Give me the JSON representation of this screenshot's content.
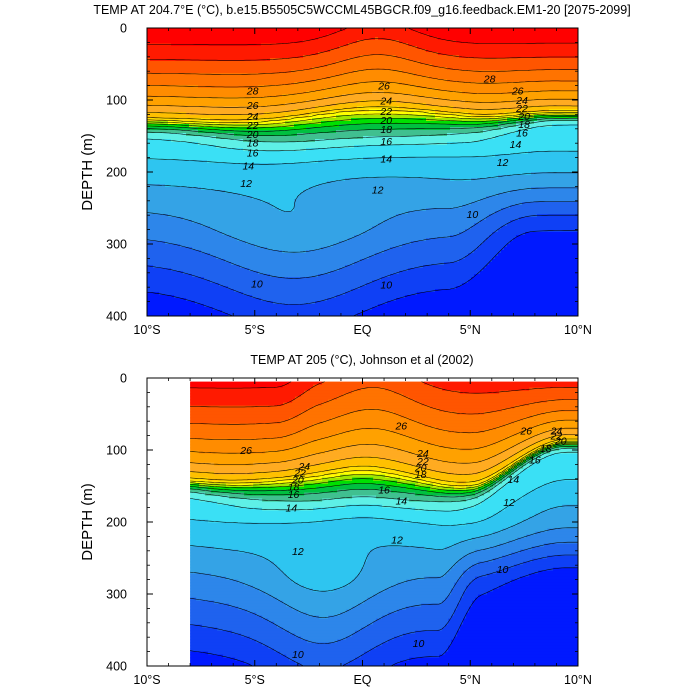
{
  "chart_data": [
    {
      "type": "contour",
      "title": "TEMP AT 204.7°E (°C), b.e15.B5505C5WCCML45BGCR.f09_g16.feedback.EM1-20 [2075-2099]",
      "xlabel": "",
      "ylabel": "DEPTH (m)",
      "xlim": [
        -10,
        10
      ],
      "ylim": [
        400,
        0
      ],
      "x_ticks": [
        -10,
        -5,
        0,
        5,
        10
      ],
      "x_tick_labels": [
        "10°S",
        "5°S",
        "EQ",
        "5°N",
        "10°N"
      ],
      "y_ticks": [
        0,
        100,
        200,
        300,
        400
      ],
      "y_tick_labels": [
        "0",
        "100",
        "200",
        "300",
        "400"
      ],
      "data_xlim": [
        -10,
        10
      ],
      "levels": [
        8,
        9,
        10,
        11,
        12,
        13,
        14,
        15,
        16,
        17,
        18,
        19,
        20,
        21,
        22,
        23,
        24,
        25,
        26,
        27,
        28,
        29
      ],
      "contour_labels": [
        {
          "text": "28",
          "lat": -5.1,
          "depth": 87
        },
        {
          "text": "26",
          "lat": -5.1,
          "depth": 107
        },
        {
          "text": "24",
          "lat": -5.1,
          "depth": 122
        },
        {
          "text": "22",
          "lat": -5.1,
          "depth": 135
        },
        {
          "text": "20",
          "lat": -5.1,
          "depth": 147
        },
        {
          "text": "18",
          "lat": -5.1,
          "depth": 159
        },
        {
          "text": "16",
          "lat": -5.1,
          "depth": 173
        },
        {
          "text": "14",
          "lat": -5.3,
          "depth": 191
        },
        {
          "text": "12",
          "lat": -5.4,
          "depth": 215
        },
        {
          "text": "10",
          "lat": -4.9,
          "depth": 355
        },
        {
          "text": "26",
          "lat": 1.0,
          "depth": 80
        },
        {
          "text": "24",
          "lat": 1.1,
          "depth": 101
        },
        {
          "text": "22",
          "lat": 1.1,
          "depth": 115
        },
        {
          "text": "20",
          "lat": 1.1,
          "depth": 128
        },
        {
          "text": "18",
          "lat": 1.1,
          "depth": 140
        },
        {
          "text": "16",
          "lat": 1.1,
          "depth": 157
        },
        {
          "text": "14",
          "lat": 1.1,
          "depth": 181
        },
        {
          "text": "12",
          "lat": 0.7,
          "depth": 224
        },
        {
          "text": "10",
          "lat": 1.1,
          "depth": 356
        },
        {
          "text": "28",
          "lat": 5.9,
          "depth": 70
        },
        {
          "text": "26",
          "lat": 7.2,
          "depth": 87
        },
        {
          "text": "24",
          "lat": 7.4,
          "depth": 100
        },
        {
          "text": "22",
          "lat": 7.4,
          "depth": 111
        },
        {
          "text": "20",
          "lat": 7.5,
          "depth": 122
        },
        {
          "text": "18",
          "lat": 7.5,
          "depth": 133
        },
        {
          "text": "16",
          "lat": 7.4,
          "depth": 145
        },
        {
          "text": "14",
          "lat": 7.1,
          "depth": 161
        },
        {
          "text": "12",
          "lat": 6.5,
          "depth": 186
        },
        {
          "text": "10",
          "lat": 5.1,
          "depth": 258
        }
      ]
    },
    {
      "type": "contour",
      "title": "TEMP AT 205 (°C), Johnson et al (2002)",
      "xlabel": "",
      "ylabel": "DEPTH (m)",
      "xlim": [
        -10,
        10
      ],
      "ylim": [
        400,
        0
      ],
      "x_ticks": [
        -10,
        -5,
        0,
        5,
        10
      ],
      "x_tick_labels": [
        "10°S",
        "5°S",
        "EQ",
        "5°N",
        "10°N"
      ],
      "y_ticks": [
        0,
        100,
        200,
        300,
        400
      ],
      "y_tick_labels": [
        "0",
        "100",
        "200",
        "300",
        "400"
      ],
      "data_xlim": [
        -8,
        10
      ],
      "data_ylim": [
        5,
        400
      ],
      "levels": [
        8,
        9,
        10,
        11,
        12,
        13,
        14,
        15,
        16,
        17,
        18,
        19,
        20,
        21,
        22,
        23,
        24,
        25,
        26,
        27,
        28,
        29
      ],
      "contour_labels": [
        {
          "text": "26",
          "lat": -5.4,
          "depth": 100
        },
        {
          "text": "24",
          "lat": -2.7,
          "depth": 122
        },
        {
          "text": "22",
          "lat": -2.9,
          "depth": 131
        },
        {
          "text": "20",
          "lat": -3.0,
          "depth": 141
        },
        {
          "text": "18",
          "lat": -3.2,
          "depth": 151
        },
        {
          "text": "16",
          "lat": -3.2,
          "depth": 161
        },
        {
          "text": "14",
          "lat": -3.3,
          "depth": 180
        },
        {
          "text": "12",
          "lat": -3.0,
          "depth": 240
        },
        {
          "text": "10",
          "lat": -3.0,
          "depth": 383
        },
        {
          "text": "26",
          "lat": 1.8,
          "depth": 66
        },
        {
          "text": "24",
          "lat": 2.8,
          "depth": 104
        },
        {
          "text": "22",
          "lat": 2.8,
          "depth": 115
        },
        {
          "text": "20",
          "lat": 2.7,
          "depth": 124
        },
        {
          "text": "18",
          "lat": 2.7,
          "depth": 133
        },
        {
          "text": "16",
          "lat": 1.0,
          "depth": 155
        },
        {
          "text": "14",
          "lat": 1.8,
          "depth": 170
        },
        {
          "text": "12",
          "lat": 1.6,
          "depth": 224
        },
        {
          "text": "10",
          "lat": 2.6,
          "depth": 368
        },
        {
          "text": "26",
          "lat": 7.6,
          "depth": 73
        },
        {
          "text": "24",
          "lat": 9.0,
          "depth": 73
        },
        {
          "text": "22",
          "lat": 9.0,
          "depth": 80
        },
        {
          "text": "20",
          "lat": 9.2,
          "depth": 87
        },
        {
          "text": "18",
          "lat": 8.5,
          "depth": 97
        },
        {
          "text": "16",
          "lat": 8.0,
          "depth": 113
        },
        {
          "text": "14",
          "lat": 7.0,
          "depth": 140
        },
        {
          "text": "12",
          "lat": 6.8,
          "depth": 172
        },
        {
          "text": "10",
          "lat": 6.5,
          "depth": 265
        }
      ]
    }
  ],
  "colors": {
    "levels": [
      "#0019ff",
      "#0f40f5",
      "#1f62ee",
      "#2d86ea",
      "#34a3e6",
      "#2ec5f0",
      "#3ae0f5",
      "#5ef0e6",
      "#40c090",
      "#00c040",
      "#00e000",
      "#a0e600",
      "#ffff00",
      "#ffde00",
      "#ffc000",
      "#ffab21",
      "#ffa100",
      "#ff8c00",
      "#ff7300",
      "#ff5500",
      "#ff1a00",
      "#ff0000",
      "#d10000"
    ],
    "background": "#ffffff",
    "contour_line": "#000000"
  }
}
